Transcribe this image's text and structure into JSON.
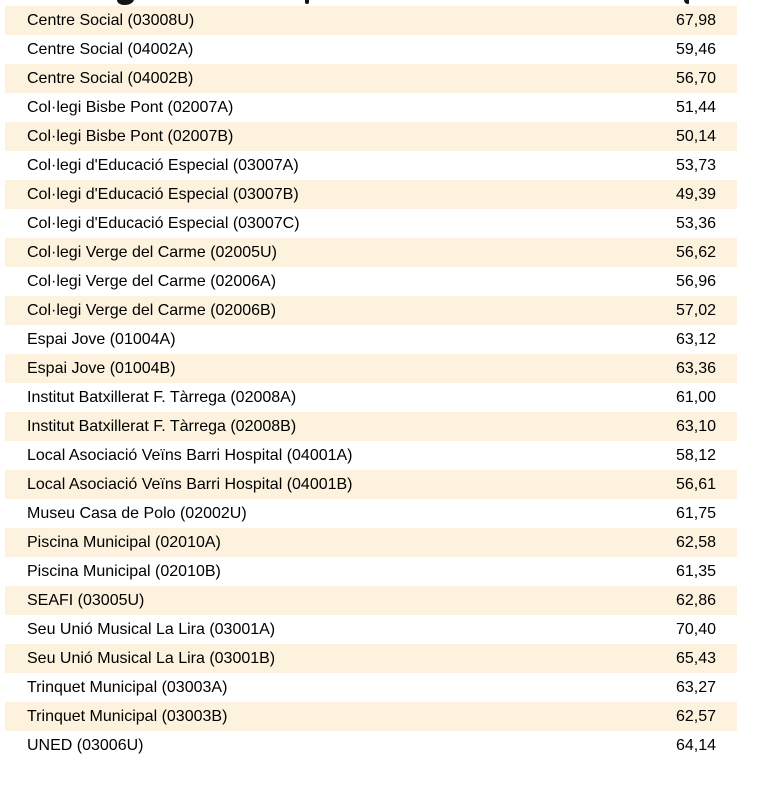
{
  "page": {
    "background_color": "#FFFFFF",
    "text_color": "#000000"
  },
  "table": {
    "stripe_color": "#FCF2DE",
    "alt_row_color": "#FFFFFF",
    "first_full_row_is_striped": true,
    "clipped_top_row": {
      "fully_readable": false
    },
    "columns": [
      "polling_station",
      "turnout_value"
    ],
    "rows": [
      {
        "name": "Centre Social (03008U)",
        "value": "67,98"
      },
      {
        "name": "Centre Social (04002A)",
        "value": "59,46"
      },
      {
        "name": "Centre Social (04002B)",
        "value": "56,70"
      },
      {
        "name": "Col·legi Bisbe Pont (02007A)",
        "value": "51,44"
      },
      {
        "name": "Col·legi Bisbe Pont (02007B)",
        "value": "50,14"
      },
      {
        "name": "Col·legi d'Educació Especial (03007A)",
        "value": "53,73"
      },
      {
        "name": "Col·legi d'Educació Especial (03007B)",
        "value": "49,39"
      },
      {
        "name": "Col·legi d'Educació Especial (03007C)",
        "value": "53,36"
      },
      {
        "name": "Col·legi Verge del Carme (02005U)",
        "value": "56,62"
      },
      {
        "name": "Col·legi Verge del Carme (02006A)",
        "value": "56,96"
      },
      {
        "name": "Col·legi Verge del Carme (02006B)",
        "value": "57,02"
      },
      {
        "name": "Espai Jove (01004A)",
        "value": "63,12"
      },
      {
        "name": "Espai Jove (01004B)",
        "value": "63,36"
      },
      {
        "name": "Institut Batxillerat F. Tàrrega (02008A)",
        "value": "61,00"
      },
      {
        "name": "Institut Batxillerat F. Tàrrega (02008B)",
        "value": "63,10"
      },
      {
        "name": "Local Asociació Veïns Barri Hospital (04001A)",
        "value": "58,12"
      },
      {
        "name": "Local Asociació Veïns Barri Hospital (04001B)",
        "value": "56,61"
      },
      {
        "name": "Museu Casa de Polo (02002U)",
        "value": "61,75"
      },
      {
        "name": "Piscina Municipal (02010A)",
        "value": "62,58"
      },
      {
        "name": "Piscina Municipal (02010B)",
        "value": "61,35"
      },
      {
        "name": "SEAFI (03005U)",
        "value": "62,86"
      },
      {
        "name": "Seu Unió Musical La Lira (03001A)",
        "value": "70,40"
      },
      {
        "name": "Seu Unió Musical La Lira (03001B)",
        "value": "65,43"
      },
      {
        "name": "Trinquet Municipal (03003A)",
        "value": "63,27"
      },
      {
        "name": "Trinquet Municipal (03003B)",
        "value": "62,57"
      },
      {
        "name": "UNED (03006U)",
        "value": "64,14"
      }
    ]
  }
}
